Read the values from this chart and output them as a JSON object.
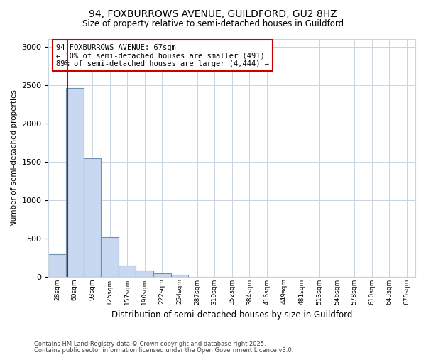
{
  "title1": "94, FOXBURROWS AVENUE, GUILDFORD, GU2 8HZ",
  "title2": "Size of property relative to semi-detached houses in Guildford",
  "xlabel": "Distribution of semi-detached houses by size in Guildford",
  "ylabel": "Number of semi-detached properties",
  "categories": [
    "28sqm",
    "60sqm",
    "93sqm",
    "125sqm",
    "157sqm",
    "190sqm",
    "222sqm",
    "254sqm",
    "287sqm",
    "319sqm",
    "352sqm",
    "384sqm",
    "416sqm",
    "449sqm",
    "481sqm",
    "513sqm",
    "546sqm",
    "578sqm",
    "610sqm",
    "643sqm",
    "675sqm"
  ],
  "values": [
    290,
    2460,
    1540,
    510,
    140,
    75,
    40,
    20,
    0,
    0,
    0,
    0,
    0,
    0,
    0,
    0,
    0,
    0,
    0,
    0,
    0
  ],
  "bar_color": "#c8d8f0",
  "bar_edge_color": "#7090b0",
  "vline_color": "#cc0000",
  "vline_x": 0.575,
  "annotation_text": "94 FOXBURROWS AVENUE: 67sqm\n← 10% of semi-detached houses are smaller (491)\n89% of semi-detached houses are larger (4,444) →",
  "annotation_box_color": "#ffffff",
  "annotation_box_edge_color": "#cc0000",
  "footnote1": "Contains HM Land Registry data © Crown copyright and database right 2025.",
  "footnote2": "Contains public sector information licensed under the Open Government Licence v3.0.",
  "ylim": [
    0,
    3100
  ],
  "yticks": [
    0,
    500,
    1000,
    1500,
    2000,
    2500,
    3000
  ],
  "bg_color": "#ffffff",
  "plot_bg_color": "#ffffff",
  "grid_color": "#c8d4e0"
}
